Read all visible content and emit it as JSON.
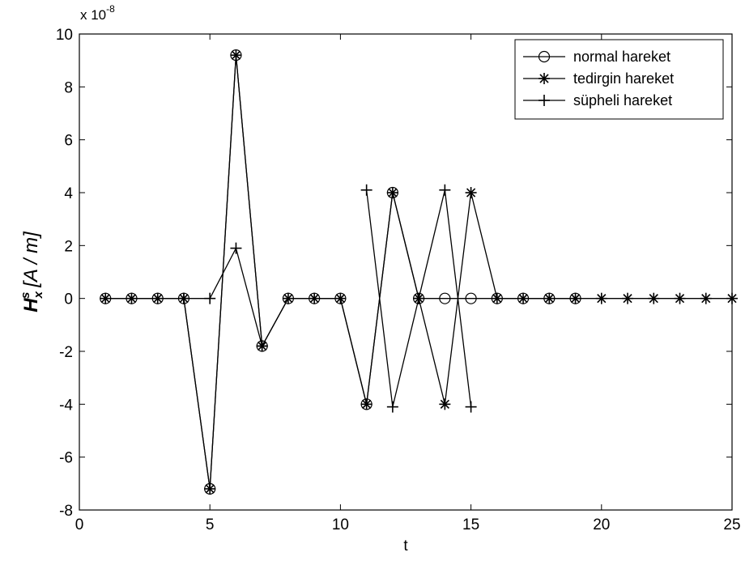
{
  "chart_data": {
    "type": "line",
    "title": "",
    "xlabel": "t",
    "ylabel": "H_x^s [A/m]",
    "ylabel_main": "H",
    "ylabel_sub": "x",
    "ylabel_sup": "s",
    "ylabel_units": "[A / m]",
    "y_multiplier": "x 10",
    "y_multiplier_exp": "-8",
    "xlim": [
      0,
      25
    ],
    "ylim": [
      -8,
      10
    ],
    "xticks": [
      0,
      5,
      10,
      15,
      20,
      25
    ],
    "yticks": [
      -8,
      -6,
      -4,
      -2,
      0,
      2,
      4,
      6,
      8,
      10
    ],
    "grid": false,
    "legend_position": "top-right",
    "x": [
      1,
      2,
      3,
      4,
      5,
      6,
      7,
      8,
      9,
      10,
      11,
      12,
      13,
      14,
      15,
      16,
      17,
      18,
      19,
      20,
      21,
      22,
      23,
      24,
      25
    ],
    "series": [
      {
        "name": "normal hareket",
        "marker": "circle",
        "values": [
          0,
          0,
          0,
          0,
          -7.2,
          9.2,
          -1.8,
          0,
          0,
          0,
          -4,
          4,
          0,
          0,
          0,
          0,
          0,
          0,
          0,
          null,
          null,
          null,
          null,
          null,
          null
        ]
      },
      {
        "name": "tedirgin hareket",
        "marker": "star",
        "values": [
          0,
          0,
          0,
          0,
          -7.2,
          9.2,
          -1.8,
          0,
          0,
          0,
          -4,
          4,
          0,
          -4,
          4,
          0,
          0,
          0,
          0,
          0,
          0,
          0,
          0,
          0,
          0
        ]
      },
      {
        "name": "süpheli hareket",
        "marker": "plus",
        "values": [
          null,
          null,
          null,
          0,
          0,
          1.9,
          -1.8,
          null,
          null,
          null,
          4.1,
          -4.1,
          0,
          4.1,
          -4.1,
          null,
          null,
          null,
          null,
          null,
          null,
          null,
          null,
          null,
          null
        ]
      }
    ]
  }
}
